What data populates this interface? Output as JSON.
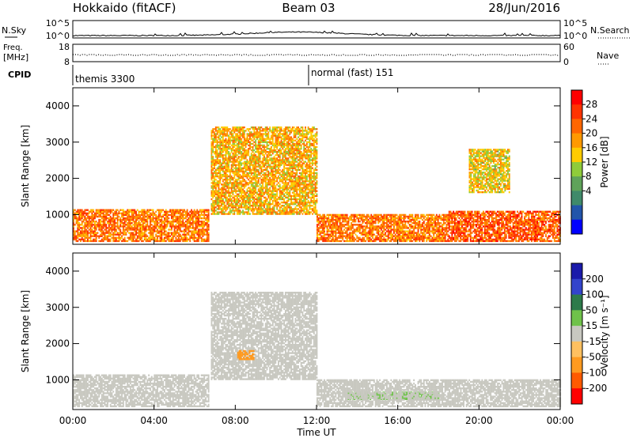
{
  "header": {
    "station": "Hokkaido (fitACF)",
    "beam": "Beam 03",
    "date": "28/Jun/2016"
  },
  "top_panels": {
    "nsky_label": "N.Sky",
    "nsky_ticks": [
      "10^5",
      "10^0"
    ],
    "nsearch_label": "N.Search",
    "nsearch_ticks": [
      "10^5",
      "10^0"
    ],
    "freq_label": "Freq.",
    "freq_unit": "[MHz]",
    "freq_ticks": [
      "18",
      "8"
    ],
    "nave_label": "Nave",
    "nave_ticks": [
      "60",
      "0"
    ],
    "cpid_label": "CPID",
    "cpid_segments": [
      "themis 3300",
      "normal (fast) 151"
    ]
  },
  "colors": {
    "power_scale": [
      "#0000ff",
      "#2255aa",
      "#3f8a6a",
      "#5fa35a",
      "#8fcc3a",
      "#ffcc00",
      "#ff9900",
      "#ff6600",
      "#ff3300",
      "#ff0000"
    ],
    "velocity_scale": [
      "#1a1aaa",
      "#3344cc",
      "#2d7a4a",
      "#6fc24a",
      "#c8c8c0",
      "#ffc060",
      "#ff9a20",
      "#ff5a00",
      "#ff0000"
    ]
  },
  "chart_data": [
    {
      "type": "heatmap",
      "panel": "power",
      "xlabel": "Time UT",
      "ylabel": "Slant Range [km]",
      "xlim": [
        "00:00",
        "00:00"
      ],
      "x_ticks": [
        "00:00",
        "04:00",
        "08:00",
        "12:00",
        "16:00",
        "20:00",
        "00:00"
      ],
      "ylim": [
        180,
        4500
      ],
      "y_ticks": [
        1000,
        2000,
        3000,
        4000
      ],
      "colorbar": {
        "label": "Power [dB]",
        "ticks": [
          28,
          24,
          20,
          16,
          12,
          8,
          4
        ]
      },
      "regions": [
        {
          "t_start": 0,
          "t_end": 6.7,
          "r_min": 250,
          "r_max": 1150,
          "power_db": 24
        },
        {
          "t_start": 6.8,
          "t_end": 12.0,
          "r_min": 1000,
          "r_max": 3400,
          "power_db": 20
        },
        {
          "t_start": 12.0,
          "t_end": 18.5,
          "r_min": 250,
          "r_max": 1000,
          "power_db": 24
        },
        {
          "t_start": 18.5,
          "t_end": 24.0,
          "r_min": 250,
          "r_max": 1100,
          "power_db": 26
        },
        {
          "t_start": 19.5,
          "t_end": 21.5,
          "r_min": 1600,
          "r_max": 2800,
          "power_db": 18
        }
      ]
    },
    {
      "type": "heatmap",
      "panel": "velocity",
      "xlabel": "Time UT",
      "ylabel": "Slant Range [km]",
      "xlim": [
        "00:00",
        "00:00"
      ],
      "x_ticks": [
        "00:00",
        "04:00",
        "08:00",
        "12:00",
        "16:00",
        "20:00",
        "00:00"
      ],
      "ylim": [
        180,
        4500
      ],
      "y_ticks": [
        1000,
        2000,
        3000,
        4000
      ],
      "colorbar": {
        "label": "Velocity [m s⁻¹]",
        "ticks": [
          200,
          100,
          50,
          15,
          -15,
          -50,
          -100,
          -200
        ]
      },
      "regions": [
        {
          "t_start": 0,
          "t_end": 6.7,
          "r_min": 250,
          "r_max": 1150,
          "velocity": 0
        },
        {
          "t_start": 6.8,
          "t_end": 12.0,
          "r_min": 1000,
          "r_max": 3400,
          "velocity": 0
        },
        {
          "t_start": 8.1,
          "t_end": 8.9,
          "r_min": 1550,
          "r_max": 1800,
          "velocity": -70
        },
        {
          "t_start": 13.5,
          "t_end": 18.0,
          "r_min": 450,
          "r_max": 650,
          "velocity": 30
        },
        {
          "t_start": 12.0,
          "t_end": 24.0,
          "r_min": 250,
          "r_max": 1000,
          "velocity": 0
        }
      ]
    }
  ]
}
